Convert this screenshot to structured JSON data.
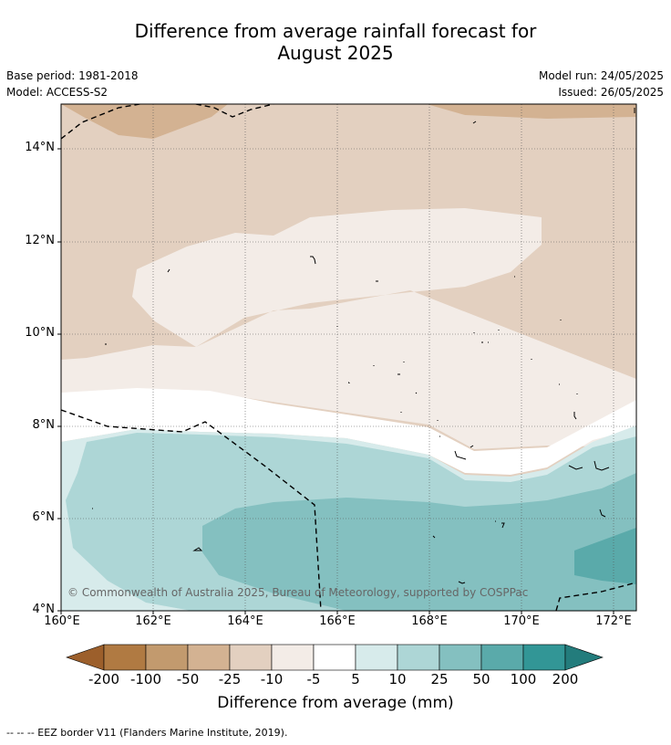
{
  "title_line1": "Difference from average rainfall forecast for",
  "title_line2": "August 2025",
  "meta": {
    "base_period": "Base period: 1981-2018",
    "model": "Model: ACCESS-S2",
    "model_run": "Model run: 24/05/2025",
    "issued": "Issued: 26/05/2025"
  },
  "map": {
    "x_ticks": [
      "160°E",
      "162°E",
      "164°E",
      "166°E",
      "168°E",
      "170°E",
      "172°E"
    ],
    "y_ticks": [
      "14°N",
      "12°N",
      "10°N",
      "8°N",
      "6°N",
      "4°N"
    ],
    "copyright": "© Commonwealth of Australia 2025, Bureau of Meteorology, supported by COSPPac"
  },
  "colorbar": {
    "labels": [
      "-200",
      "-100",
      "-50",
      "-25",
      "-10",
      "-5",
      "5",
      "10",
      "25",
      "50",
      "100",
      "200"
    ],
    "colors": [
      "#9c5f2b",
      "#b07a42",
      "#c29a6e",
      "#d3b292",
      "#e3d0c0",
      "#f3ece7",
      "#ffffff",
      "#d7ebeb",
      "#add6d6",
      "#84c0c0",
      "#5aaaaa",
      "#329696",
      "#237c7c"
    ],
    "title": "Difference from average (mm)"
  },
  "footer": "--  --  -- EEZ border V11 (Flanders Marine Institute, 2019)."
}
